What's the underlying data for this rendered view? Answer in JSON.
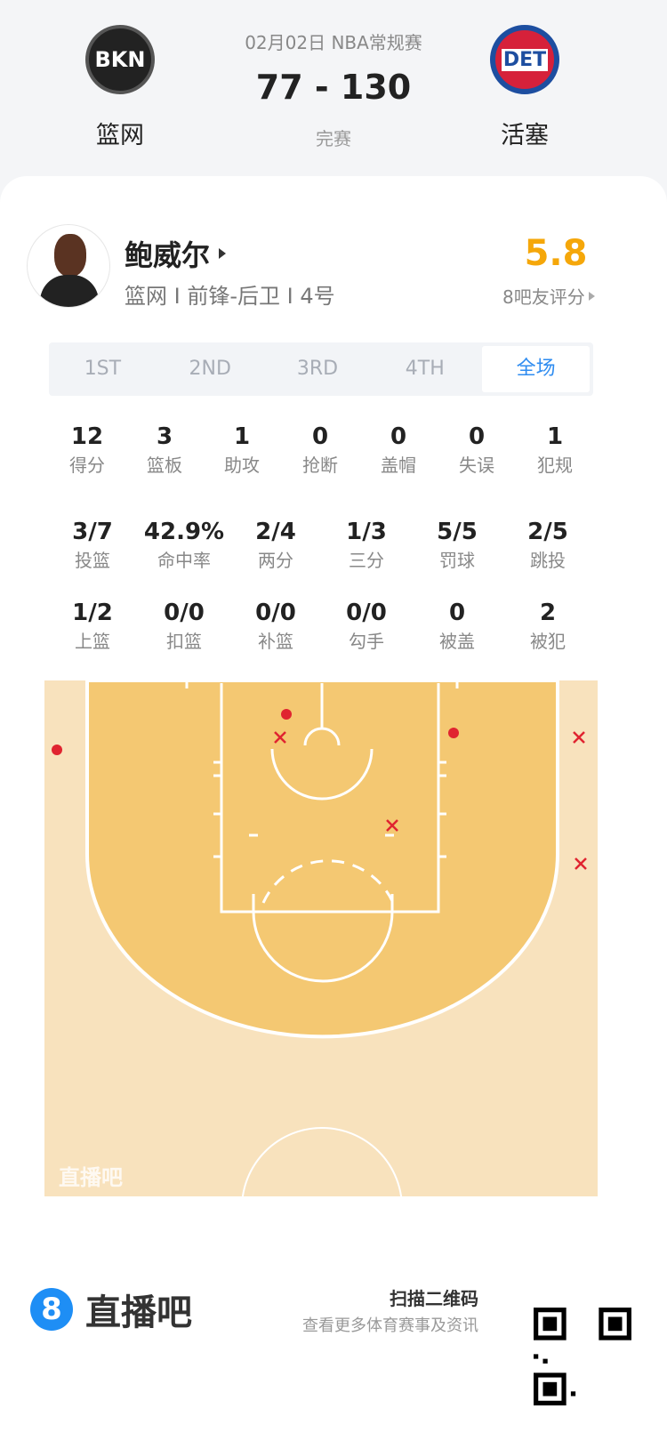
{
  "match": {
    "date_league": "02月02日 NBA常规赛",
    "score": "77 - 130",
    "status": "完赛",
    "home": {
      "name": "篮网",
      "abbr": "BKN"
    },
    "away": {
      "name": "活塞",
      "abbr": "DET"
    }
  },
  "player": {
    "name": "鲍威尔",
    "info": "篮网 I 前锋-后卫 I 4号",
    "rating": "5.8",
    "rating_label": "8吧友评分"
  },
  "tabs": [
    "1ST",
    "2ND",
    "3RD",
    "4TH",
    "全场"
  ],
  "active_tab": "全场",
  "stats_row1": [
    {
      "v": "12",
      "l": "得分"
    },
    {
      "v": "3",
      "l": "篮板"
    },
    {
      "v": "1",
      "l": "助攻"
    },
    {
      "v": "0",
      "l": "抢断"
    },
    {
      "v": "0",
      "l": "盖帽"
    },
    {
      "v": "0",
      "l": "失误"
    },
    {
      "v": "1",
      "l": "犯规"
    }
  ],
  "stats_row2": [
    {
      "v": "3/7",
      "l": "投篮"
    },
    {
      "v": "42.9%",
      "l": "命中率"
    },
    {
      "v": "2/4",
      "l": "两分"
    },
    {
      "v": "1/3",
      "l": "三分"
    },
    {
      "v": "5/5",
      "l": "罚球"
    },
    {
      "v": "2/5",
      "l": "跳投"
    }
  ],
  "stats_row3": [
    {
      "v": "1/2",
      "l": "上篮"
    },
    {
      "v": "0/0",
      "l": "扣篮"
    },
    {
      "v": "0/0",
      "l": "补篮"
    },
    {
      "v": "0/0",
      "l": "勾手"
    },
    {
      "v": "0",
      "l": "被盖"
    },
    {
      "v": "2",
      "l": "被犯"
    }
  ],
  "court": {
    "watermark": "直播吧",
    "made_color": "#e02430",
    "miss_color": "#e02430"
  },
  "footer": {
    "brand": "直播吧",
    "brand_badge": "8",
    "scan": "扫描二维码",
    "tagline": "查看更多体育赛事及资讯"
  },
  "colors": {
    "accent": "#2f8cf0",
    "rating": "#f5a70a"
  }
}
